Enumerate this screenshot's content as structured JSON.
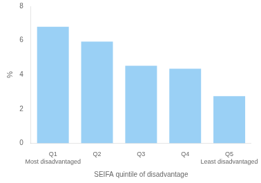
{
  "chart_data": {
    "type": "bar",
    "categories": [
      "Q1\nMost disadvantaged",
      "Q2",
      "Q3",
      "Q4",
      "Q5\nLeast disadvantaged"
    ],
    "values": [
      6.8,
      5.93,
      4.52,
      4.35,
      2.75
    ],
    "xlabel": "SEIFA quintile of disadvantage",
    "ylabel": "%",
    "ylim": [
      0,
      8
    ],
    "yticks": [
      0,
      2,
      4,
      6,
      8
    ],
    "grid": false
  }
}
